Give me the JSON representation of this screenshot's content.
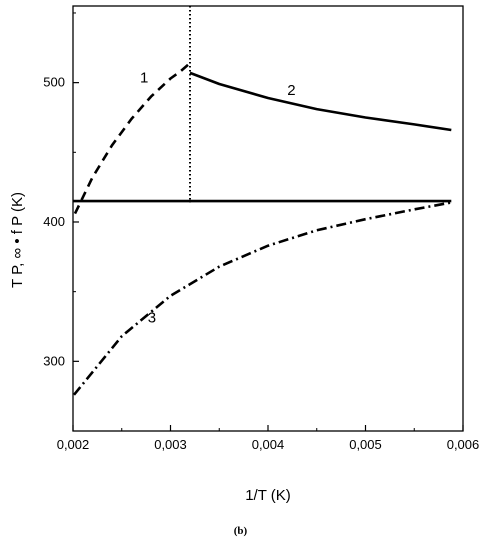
{
  "panel_label": "(b)",
  "chart_data": {
    "type": "line",
    "xlabel": "1/T (K)",
    "ylabel": "T P, ∞ • f P (K)",
    "xlim": [
      0.002,
      0.006
    ],
    "ylim": [
      250,
      555
    ],
    "x_ticks": [
      0.002,
      0.003,
      0.004,
      0.005,
      0.006
    ],
    "x_tick_labels": [
      "0,002",
      "0,003",
      "0,004",
      "0,005",
      "0,006"
    ],
    "y_ticks": [
      300,
      400,
      500
    ],
    "y_tick_labels": [
      "300",
      "400",
      "500"
    ],
    "grid": false,
    "series": [
      {
        "name": "1",
        "style": "dashed",
        "x": [
          0.00202,
          0.0022,
          0.0024,
          0.0026,
          0.0028,
          0.003,
          0.0031,
          0.0032
        ],
        "y": [
          406,
          432,
          455,
          474,
          490,
          503,
          508,
          514
        ]
      },
      {
        "name": "2",
        "style": "solid",
        "x": [
          0.0032,
          0.0035,
          0.004,
          0.0045,
          0.005,
          0.0055,
          0.00588
        ],
        "y": [
          507,
          499,
          489,
          481,
          475,
          470,
          466
        ]
      },
      {
        "name": "3",
        "style": "dashdot",
        "x": [
          0.00201,
          0.0025,
          0.003,
          0.0035,
          0.004,
          0.0045,
          0.005,
          0.0055,
          0.00588
        ],
        "y": [
          276,
          318,
          347,
          368,
          383,
          394,
          402,
          409,
          414
        ]
      },
      {
        "style": "solid",
        "x": [
          0.002,
          0.00588
        ],
        "y": [
          415,
          415
        ]
      }
    ],
    "vline": {
      "x": 0.0032,
      "style": "dotted"
    },
    "labels": [
      {
        "text": "1",
        "x": 0.00273,
        "y": 500
      },
      {
        "text": "2",
        "x": 0.00424,
        "y": 491
      },
      {
        "text": "3",
        "x": 0.00281,
        "y": 328
      }
    ]
  }
}
